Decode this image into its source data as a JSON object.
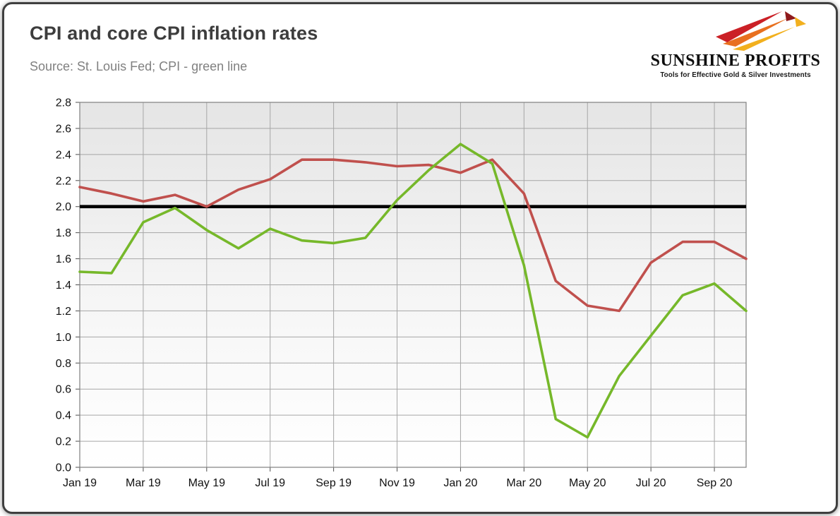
{
  "header": {
    "title": "CPI and core CPI inflation rates",
    "source": "Source: St. Louis Fed; CPI - green line"
  },
  "logo": {
    "name": "SUNSHINE PROFITS",
    "tagline": "Tools for Effective Gold & Silver Investments",
    "colors": {
      "red": "#cb2026",
      "dark_red": "#8f1a1c",
      "orange": "#e8701f",
      "yellow": "#f2b01e"
    }
  },
  "chart_data": {
    "type": "line",
    "title": "CPI and core CPI inflation rates",
    "x": [
      "Jan 19",
      "Feb 19",
      "Mar 19",
      "Apr 19",
      "May 19",
      "Jun 19",
      "Jul 19",
      "Aug 19",
      "Sep 19",
      "Oct 19",
      "Nov 19",
      "Dec 19",
      "Jan 20",
      "Feb 20",
      "Mar 20",
      "Apr 20",
      "May 20",
      "Jun 20",
      "Jul 20",
      "Aug 20",
      "Sep 20",
      "Oct 20"
    ],
    "x_tick_labels": [
      "Jan 19",
      "Mar 19",
      "May 19",
      "Jul 19",
      "Sep 19",
      "Nov 19",
      "Jan 20",
      "Mar 20",
      "May 20",
      "Jul 20",
      "Sep 20"
    ],
    "series": [
      {
        "name": "Core CPI",
        "color": "#c0504d",
        "values": [
          2.15,
          2.1,
          2.04,
          2.09,
          2.0,
          2.13,
          2.21,
          2.36,
          2.36,
          2.34,
          2.31,
          2.32,
          2.26,
          2.36,
          2.1,
          1.43,
          1.24,
          1.2,
          1.57,
          1.73,
          1.73,
          1.6
        ]
      },
      {
        "name": "CPI",
        "color": "#76b82a",
        "values": [
          1.5,
          1.49,
          1.88,
          1.99,
          1.82,
          1.68,
          1.83,
          1.74,
          1.72,
          1.76,
          2.05,
          2.28,
          2.48,
          2.33,
          1.55,
          0.37,
          0.23,
          0.7,
          1.01,
          1.32,
          1.41,
          1.2
        ]
      }
    ],
    "reference_line": {
      "value": 2.0,
      "color": "#000000"
    },
    "ylim": [
      0.0,
      2.8
    ],
    "ytick_step": 0.2,
    "grid": true,
    "legend": "none"
  }
}
